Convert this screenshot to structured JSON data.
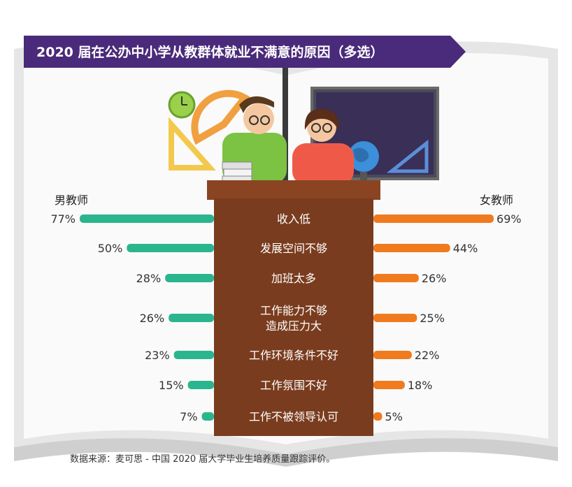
{
  "title": "2020 届在公办中小学从教群体就业不满意的原因（多选）",
  "source": "数据来源：麦可思 - 中国 2020 届大学毕业生培养质量跟踪评价。",
  "colors": {
    "male": "#2bb58e",
    "female": "#f07a1e",
    "podium": "#7a3c1e",
    "banner": "#4a2a7a",
    "book": "#c9c9c9"
  },
  "chart_data": {
    "type": "bar",
    "layout": "butterfly",
    "categories": [
      "收入低",
      "发展空间不够",
      "加班太多",
      "工作能力不够\n造成压力大",
      "工作环境条件不好",
      "工作氛围不好",
      "工作不被领导认可"
    ],
    "series": [
      {
        "name": "男教师",
        "values": [
          77,
          50,
          28,
          26,
          23,
          15,
          7
        ]
      },
      {
        "name": "女教师",
        "values": [
          69,
          44,
          26,
          25,
          22,
          18,
          5
        ]
      }
    ],
    "value_suffix": "%"
  }
}
